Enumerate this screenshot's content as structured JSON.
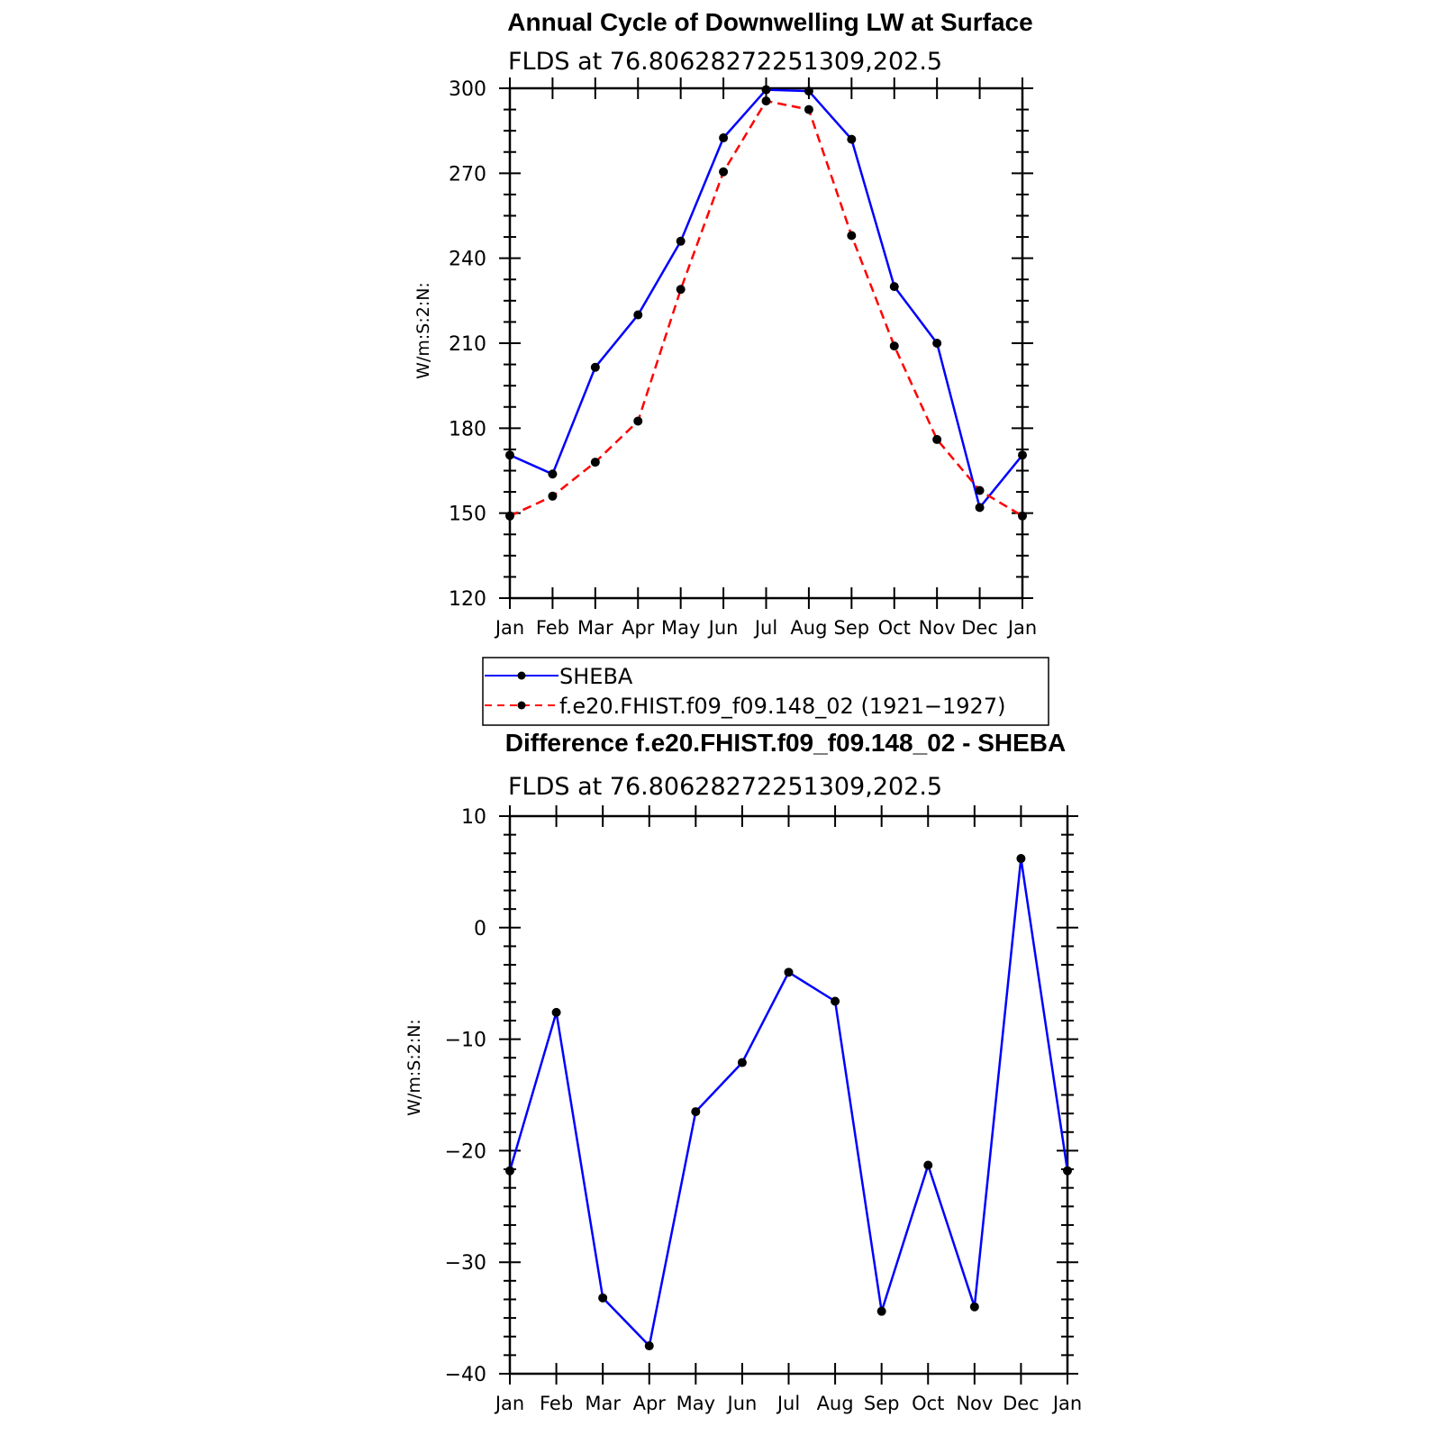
{
  "chart_data": [
    {
      "type": "line",
      "title": "Annual Cycle of Downwelling LW at Surface",
      "subtitle": "FLDS at 76.80628272251309,202.5",
      "ylabel": "W/m:S:2:N:",
      "xlabel": "",
      "categories": [
        "Jan",
        "Feb",
        "Mar",
        "Apr",
        "May",
        "Jun",
        "Jul",
        "Aug",
        "Sep",
        "Oct",
        "Nov",
        "Dec",
        "Jan"
      ],
      "ylim": [
        120,
        300
      ],
      "yticks": [
        120,
        150,
        180,
        210,
        240,
        270,
        300
      ],
      "ytick_labels": [
        "120",
        "150",
        "180",
        "210",
        "240",
        "270",
        "300"
      ],
      "grid": false,
      "legend_position": "below",
      "series": [
        {
          "name": "SHEBA",
          "color": "#0000ff",
          "dash": "solid",
          "values": [
            170.5,
            163.8,
            201.5,
            220,
            246,
            282.5,
            299.5,
            299,
            282,
            230,
            210,
            152,
            170.5
          ]
        },
        {
          "name": "f.e20.FHIST.f09_f09.148_02 (1921−1927)",
          "color": "#ff0000",
          "dash": "dashed",
          "values": [
            149,
            156,
            168,
            182.5,
            229,
            270.5,
            295.5,
            292.5,
            248,
            209,
            176,
            158,
            149
          ]
        }
      ]
    },
    {
      "type": "line",
      "title": "Difference f.e20.FHIST.f09_f09.148_02 - SHEBA",
      "subtitle": "FLDS at 76.80628272251309,202.5",
      "ylabel": "W/m:S:2:N:",
      "xlabel": "",
      "categories": [
        "Jan",
        "Feb",
        "Mar",
        "Apr",
        "May",
        "Jun",
        "Jul",
        "Aug",
        "Sep",
        "Oct",
        "Nov",
        "Dec",
        "Jan"
      ],
      "ylim": [
        -40,
        10
      ],
      "yticks": [
        -40,
        -30,
        -20,
        -10,
        0,
        10
      ],
      "ytick_labels": [
        "−40",
        "−30",
        "−20",
        "−10",
        "0",
        "10"
      ],
      "grid": false,
      "series": [
        {
          "name": "",
          "color": "#0000ff",
          "dash": "solid",
          "values": [
            -21.8,
            -7.6,
            -33.2,
            -37.5,
            -16.5,
            -12.1,
            -4,
            -6.6,
            -34.4,
            -21.3,
            -34,
            6.2,
            -21.8
          ]
        }
      ]
    }
  ]
}
